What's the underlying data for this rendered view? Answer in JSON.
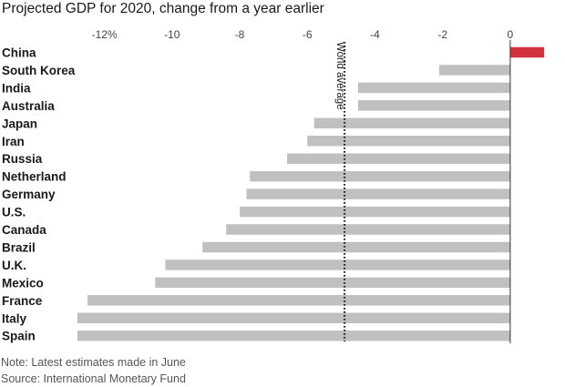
{
  "chart_data": {
    "type": "bar",
    "orientation": "horizontal",
    "title": "Projected GDP for 2020, change from a year earlier",
    "categories": [
      "China",
      "South Korea",
      "India",
      "Australia",
      "Japan",
      "Iran",
      "Russia",
      "Netherland",
      "Germany",
      "U.S.",
      "Canada",
      "Brazil",
      "U.K.",
      "Mexico",
      "France",
      "Italy",
      "Spain"
    ],
    "values": [
      1.0,
      -2.1,
      -4.5,
      -4.5,
      -5.8,
      -6.0,
      -6.6,
      -7.7,
      -7.8,
      -8.0,
      -8.4,
      -9.1,
      -10.2,
      -10.5,
      -12.5,
      -12.8,
      -12.8
    ],
    "xlim": [
      -13,
      1
    ],
    "xticks": [
      -12,
      -10,
      -8,
      -6,
      -4,
      -2,
      0
    ],
    "xtick_labels": [
      "-12%",
      "-10",
      "-8",
      "-6",
      "-4",
      "-2",
      "0"
    ],
    "world_average": -4.9,
    "world_average_label": "World average",
    "colors": {
      "positive": "#d0313c",
      "negative": "#c0c0c0",
      "reference_line": "#222222"
    },
    "grid": false
  },
  "notes": {
    "note": "Note: Latest estimates made in June",
    "source": "Source: International Monetary Fund"
  }
}
